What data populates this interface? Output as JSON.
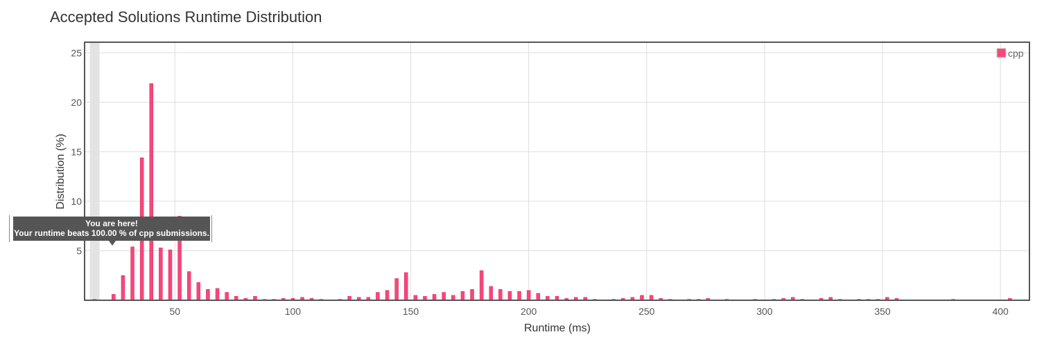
{
  "chart_data": {
    "type": "bar",
    "title": "Accepted Solutions Runtime Distribution",
    "xlabel": "Runtime (ms)",
    "ylabel": "Distribution (%)",
    "xlim": [
      12,
      412
    ],
    "ylim": [
      0,
      26
    ],
    "xticks": [
      50,
      100,
      150,
      200,
      250,
      300,
      350,
      400
    ],
    "yticks": [
      5,
      10,
      15,
      20,
      25
    ],
    "grid": true,
    "legend_position": "top-right",
    "series": [
      {
        "name": "cpp",
        "color": "#f5477a",
        "x": [
          16,
          24,
          28,
          32,
          36,
          40,
          44,
          48,
          52,
          56,
          60,
          64,
          68,
          72,
          76,
          80,
          84,
          88,
          92,
          96,
          100,
          104,
          108,
          112,
          120,
          124,
          128,
          132,
          136,
          140,
          144,
          148,
          152,
          156,
          160,
          164,
          168,
          172,
          176,
          180,
          184,
          188,
          192,
          196,
          200,
          204,
          208,
          212,
          216,
          220,
          224,
          228,
          236,
          240,
          244,
          248,
          252,
          256,
          260,
          268,
          272,
          276,
          284,
          296,
          304,
          308,
          312,
          316,
          324,
          328,
          332,
          340,
          344,
          348,
          352,
          356,
          380,
          404
        ],
        "values": [
          0.1,
          0.6,
          2.5,
          5.4,
          14.4,
          21.9,
          5.3,
          5.1,
          8.5,
          2.9,
          1.8,
          1.1,
          1.2,
          0.8,
          0.4,
          0.2,
          0.4,
          0.1,
          0.1,
          0.2,
          0.2,
          0.3,
          0.2,
          0.1,
          0.1,
          0.4,
          0.3,
          0.3,
          0.8,
          1.0,
          2.2,
          2.8,
          0.5,
          0.4,
          0.6,
          0.8,
          0.5,
          0.9,
          1.1,
          3.0,
          1.4,
          1.1,
          0.9,
          0.9,
          1.0,
          0.7,
          0.4,
          0.4,
          0.2,
          0.3,
          0.3,
          0.1,
          0.1,
          0.2,
          0.3,
          0.5,
          0.5,
          0.2,
          0.1,
          0.1,
          0.1,
          0.2,
          0.1,
          0.1,
          0.1,
          0.2,
          0.3,
          0.1,
          0.2,
          0.3,
          0.1,
          0.1,
          0.1,
          0.1,
          0.3,
          0.2,
          0.1,
          0.2
        ]
      }
    ],
    "highlight": {
      "x": 16
    }
  },
  "tooltip": {
    "line1": "You are here!",
    "line2": "Your runtime beats 100.00 % of cpp submissions."
  }
}
